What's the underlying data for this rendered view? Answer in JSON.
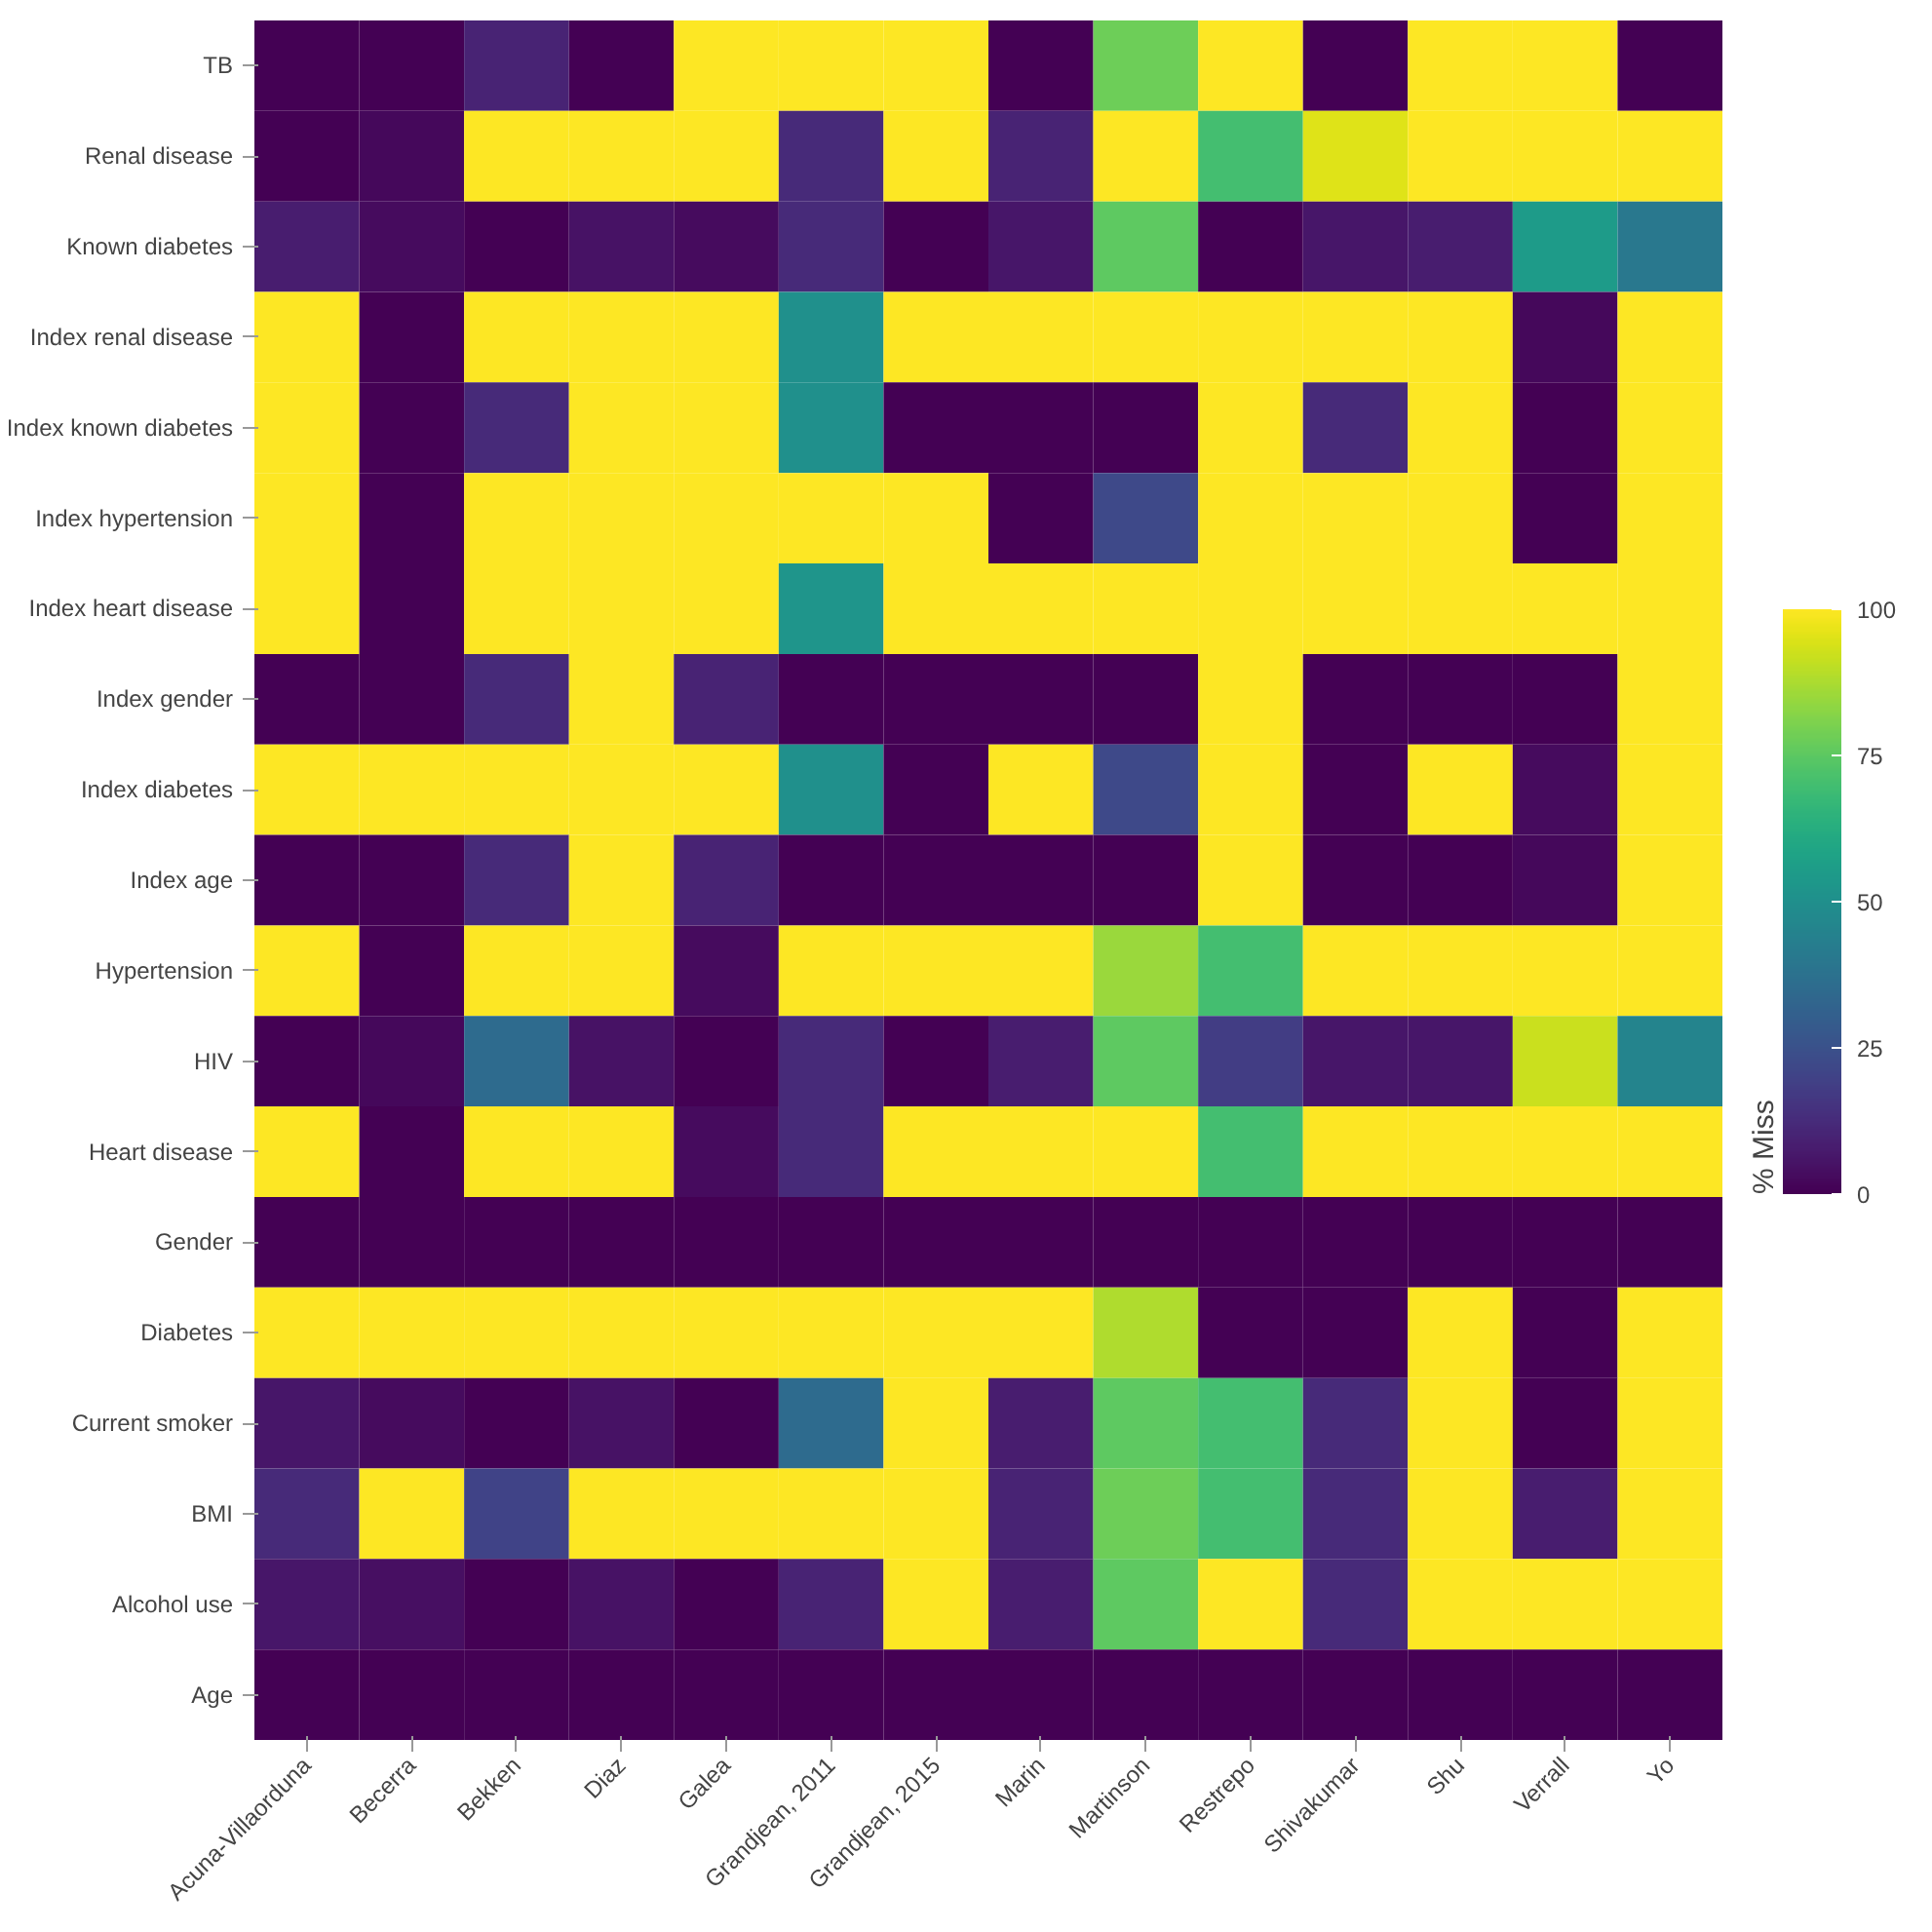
{
  "chart_data": {
    "type": "heatmap",
    "clabel": "% Miss",
    "clim": [
      0,
      100
    ],
    "cticks": [
      0,
      25,
      50,
      75,
      100
    ],
    "grid": false,
    "categories": [
      "Acuna-Villaorduna",
      "Becerra",
      "Bekken",
      "Diaz",
      "Galea",
      "Grandjean, 2011",
      "Grandjean, 2015",
      "Marin",
      "Martinson",
      "Restrepo",
      "Shivakumar",
      "Shu",
      "Verrall",
      "Yo"
    ],
    "y_categories": [
      "TB",
      "Renal disease",
      "Known diabetes",
      "Index renal disease",
      "Index known diabetes",
      "Index hypertension",
      "Index heart disease",
      "Index gender",
      "Index diabetes",
      "Index age",
      "Hypertension",
      "HIV",
      "Heart disease",
      "Gender",
      "Diabetes",
      "Current smoker",
      "BMI",
      "Alcohol use",
      "Age"
    ],
    "cells": [
      [
        0,
        0,
        10,
        0,
        100,
        100,
        100,
        0,
        78,
        100,
        0,
        100,
        100,
        0
      ],
      [
        0,
        2,
        100,
        100,
        100,
        12,
        100,
        10,
        100,
        70,
        95,
        100,
        100,
        100
      ],
      [
        8,
        3,
        0,
        5,
        3,
        12,
        0,
        6,
        75,
        0,
        6,
        8,
        55,
        40
      ],
      [
        100,
        0,
        100,
        100,
        100,
        50,
        100,
        100,
        100,
        100,
        100,
        100,
        2,
        100
      ],
      [
        100,
        0,
        12,
        100,
        100,
        50,
        0,
        0,
        0,
        100,
        12,
        100,
        0,
        100
      ],
      [
        100,
        0,
        100,
        100,
        100,
        100,
        100,
        0,
        22,
        100,
        100,
        100,
        0,
        100
      ],
      [
        100,
        0,
        100,
        100,
        100,
        52,
        100,
        100,
        100,
        100,
        100,
        100,
        100,
        100
      ],
      [
        0,
        0,
        12,
        100,
        10,
        0,
        0,
        0,
        0,
        100,
        0,
        0,
        0,
        100
      ],
      [
        100,
        100,
        100,
        100,
        100,
        50,
        0,
        100,
        22,
        100,
        0,
        100,
        3,
        100
      ],
      [
        0,
        0,
        12,
        100,
        10,
        0,
        0,
        0,
        0,
        100,
        0,
        0,
        2,
        100
      ],
      [
        100,
        0,
        100,
        100,
        3,
        100,
        100,
        100,
        85,
        70,
        100,
        100,
        100,
        100
      ],
      [
        0,
        2,
        35,
        5,
        0,
        12,
        0,
        8,
        75,
        18,
        6,
        6,
        92,
        45
      ],
      [
        100,
        0,
        100,
        100,
        3,
        12,
        100,
        100,
        100,
        70,
        100,
        100,
        100,
        100
      ],
      [
        0,
        0,
        0,
        0,
        0,
        0,
        0,
        0,
        0,
        0,
        0,
        0,
        0,
        0
      ],
      [
        100,
        100,
        100,
        100,
        100,
        100,
        100,
        100,
        88,
        0,
        0,
        100,
        0,
        100
      ],
      [
        6,
        3,
        0,
        5,
        0,
        35,
        100,
        8,
        75,
        70,
        12,
        100,
        0,
        100
      ],
      [
        12,
        100,
        20,
        100,
        100,
        100,
        100,
        10,
        78,
        70,
        12,
        100,
        8,
        100
      ],
      [
        6,
        4,
        0,
        5,
        0,
        10,
        100,
        8,
        75,
        100,
        12,
        100,
        100,
        100
      ],
      [
        0,
        0,
        0,
        0,
        0,
        0,
        0,
        0,
        0,
        0,
        0,
        0,
        0,
        0
      ]
    ]
  }
}
